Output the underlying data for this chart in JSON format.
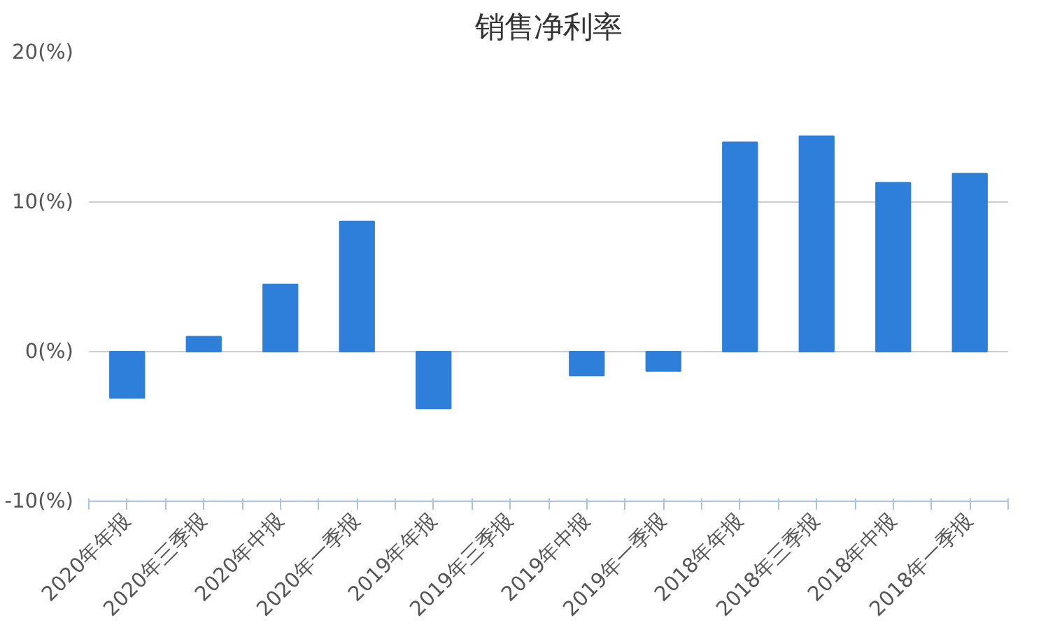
{
  "chart_data": {
    "type": "bar",
    "title": "销售净利率",
    "categories": [
      "2020年年报",
      "2020年三季报",
      "2020年中报",
      "2020年一季报",
      "2019年年报",
      "2019年三季报",
      "2019年中报",
      "2019年一季报",
      "2018年年报",
      "2018年三季报",
      "2018年中报",
      "2018年一季报"
    ],
    "series": [
      {
        "color": "#2e7fd9",
        "values": [
          -3.1,
          1.0,
          4.5,
          8.7,
          -3.8,
          null,
          -1.6,
          -1.3,
          14.0,
          14.4,
          11.3,
          11.9
        ]
      }
    ],
    "ylim": [
      -10,
      20
    ],
    "yticks": [
      {
        "value": -10,
        "label": "-10(%)"
      },
      {
        "value": 0,
        "label": "0(%)"
      },
      {
        "value": 10,
        "label": "10(%)"
      },
      {
        "value": 20,
        "label": "20(%)"
      }
    ],
    "grid": "y"
  }
}
